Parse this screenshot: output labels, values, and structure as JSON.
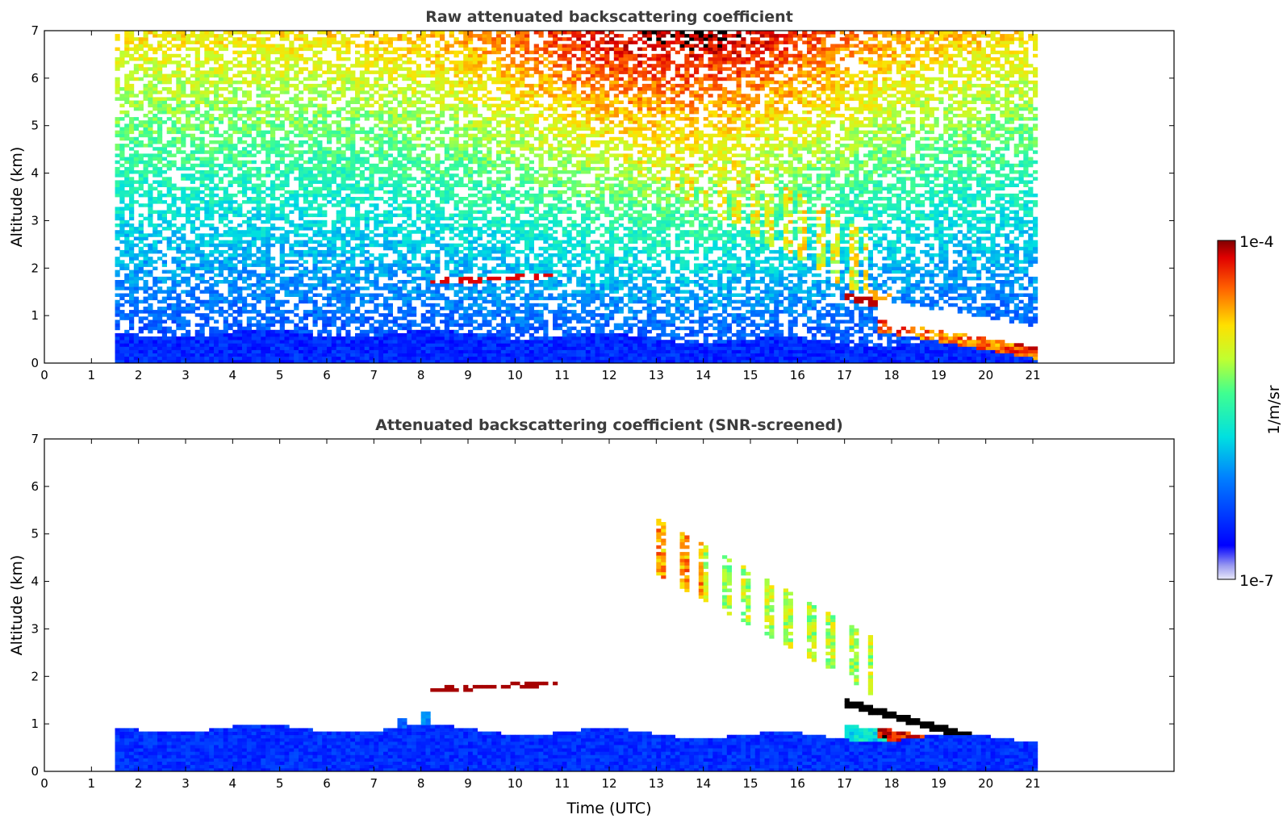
{
  "chart_data": [
    {
      "type": "heatmap",
      "title": "Raw attenuated backscattering coefficient",
      "xlabel": "",
      "ylabel": "Altitude (km)",
      "xlim": [
        0,
        24
      ],
      "ylim": [
        0,
        7
      ],
      "xticks": [
        0,
        1,
        2,
        3,
        4,
        5,
        6,
        7,
        8,
        9,
        10,
        11,
        12,
        13,
        14,
        15,
        16,
        17,
        18,
        19,
        20,
        21
      ],
      "yticks": [
        0,
        1,
        2,
        3,
        4,
        5,
        6,
        7
      ],
      "data_time_range": [
        1.55,
        21.15
      ],
      "features": [
        {
          "name": "boundary layer",
          "x_range": [
            1.55,
            21.15
          ],
          "altitude_top": [
            0.6,
            0.3
          ]
        },
        {
          "name": "elevated aerosol layer",
          "x_range": [
            8.2,
            10.9
          ],
          "altitude": 1.8
        },
        {
          "name": "descending cloud layer",
          "x_range": [
            17.0,
            21.15
          ],
          "altitude": [
            1.4,
            0.25
          ]
        },
        {
          "name": "virga / high-altitude signal",
          "x_range": [
            12.0,
            17.5
          ],
          "altitude": [
            1.2,
            4.2
          ]
        }
      ]
    },
    {
      "type": "heatmap",
      "title": "Attenuated backscattering coefficient (SNR-screened)",
      "xlabel": "Time (UTC)",
      "ylabel": "Altitude (km)",
      "xlim": [
        0,
        24
      ],
      "ylim": [
        0,
        7
      ],
      "xticks": [
        0,
        1,
        2,
        3,
        4,
        5,
        6,
        7,
        8,
        9,
        10,
        11,
        12,
        13,
        14,
        15,
        16,
        17,
        18,
        19,
        20,
        21
      ],
      "yticks": [
        0,
        1,
        2,
        3,
        4,
        5,
        6,
        7
      ],
      "data_time_range": [
        1.55,
        21.15
      ]
    }
  ],
  "colorbar": {
    "label": "1/m/sr",
    "max_label": "1e-4",
    "min_label": "1e-7",
    "scale": "log",
    "colormap": "jet"
  }
}
